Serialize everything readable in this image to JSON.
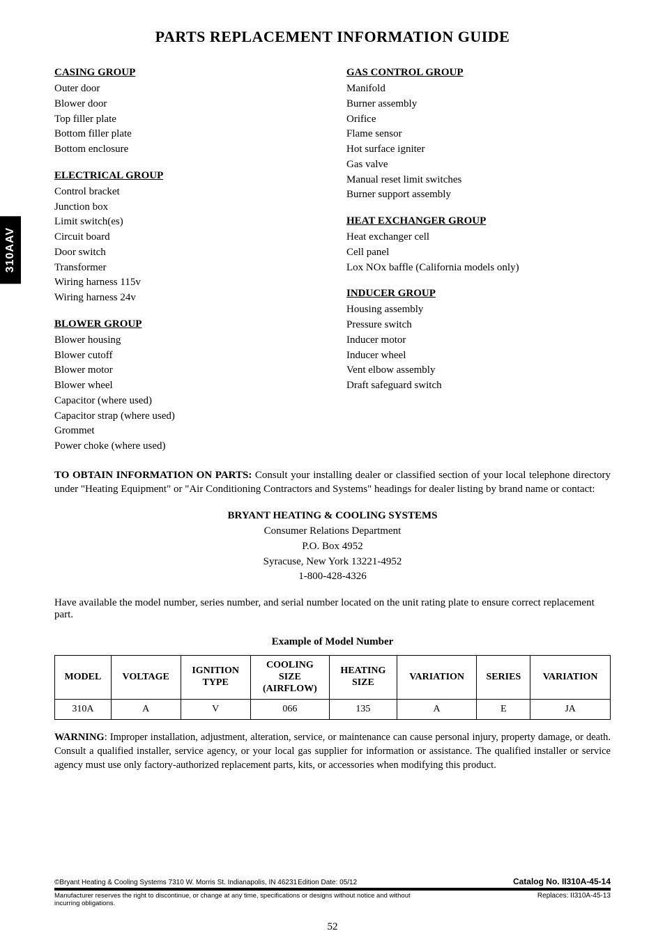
{
  "side_tab": "310AAV",
  "title": "PARTS REPLACEMENT INFORMATION GUIDE",
  "left_groups": [
    {
      "head": "CASING GROUP",
      "items": [
        "Outer door",
        "Blower door",
        "Top filler plate",
        "Bottom filler plate",
        "Bottom enclosure"
      ]
    },
    {
      "head": "ELECTRICAL GROUP",
      "items": [
        "Control bracket",
        "Junction box",
        "Limit switch(es)",
        "Circuit board",
        "Door switch",
        "Transformer",
        "Wiring harness 115v",
        "Wiring harness 24v"
      ]
    },
    {
      "head": "BLOWER GROUP",
      "items": [
        "Blower housing",
        "Blower cutoff",
        "Blower motor",
        "Blower wheel",
        "Capacitor (where used)",
        "Capacitor strap (where used)",
        "Grommet",
        "Power choke (where used)"
      ]
    }
  ],
  "right_groups": [
    {
      "head": "GAS CONTROL GROUP",
      "items": [
        "Manifold",
        "Burner assembly",
        "Orifice",
        "Flame sensor",
        "Hot surface igniter",
        "Gas valve",
        "Manual reset limit switches",
        "Burner support assembly"
      ]
    },
    {
      "head": "HEAT EXCHANGER GROUP",
      "items": [
        "Heat exchanger cell",
        "Cell panel",
        "Lox NOx baffle (California models only)"
      ]
    },
    {
      "head": "INDUCER GROUP",
      "items": [
        "Housing assembly",
        "Pressure switch",
        "Inducer motor",
        "Inducer wheel",
        "Vent elbow assembly",
        "Draft safeguard switch"
      ]
    }
  ],
  "obtain_label": "TO OBTAIN INFORMATION ON PARTS:",
  "obtain_text": " Consult your installing dealer or classified section of your local telephone directory under \"Heating Equipment\" or \"Air Conditioning Contractors and Systems\" headings for dealer listing by brand name or contact:",
  "contact": {
    "company": "BRYANT HEATING & COOLING SYSTEMS",
    "dept": "Consumer Relations Department",
    "po": "P.O. Box 4952",
    "city": "Syracuse, New York  13221-4952",
    "phone": "1-800-428-4326"
  },
  "have_text": "Have available the model number, series number, and serial number located on the unit rating plate to ensure correct replacement part.",
  "example_head": "Example of Model Number",
  "table": {
    "headers": [
      "MODEL",
      "VOLTAGE",
      "IGNITION TYPE",
      "COOLING SIZE (AIRFLOW)",
      "HEATING SIZE",
      "VARIATION",
      "SERIES",
      "VARIATION"
    ],
    "row": [
      "310A",
      "A",
      "V",
      "066",
      "135",
      "A",
      "E",
      "JA"
    ]
  },
  "warning_label": "WARNING",
  "warning_text": ": Improper installation, adjustment, alteration, service, or maintenance can cause personal injury, property damage, or death. Consult a qualified installer, service agency, or your local gas supplier for information or assistance. The qualified installer or service agency must use only factory-authorized replacement parts, kits, or accessories when modifying this product.",
  "footer": {
    "copyright": "©Bryant Heating & Cooling Systems  7310 W. Morris St.  Indianapolis, IN  46231",
    "edition": "Edition Date: 05/12",
    "catalog": "Catalog No. II310A-45-14",
    "disclaimer": "Manufacturer reserves the right to discontinue, or change at any time, specifications or designs without notice and without incurring obligations.",
    "replaces": "Replaces: II310A-45-13"
  },
  "pagenum": "52"
}
